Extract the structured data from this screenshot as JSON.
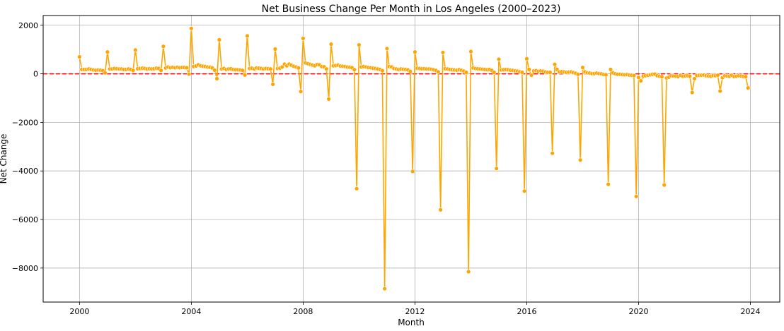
{
  "chart_data": {
    "type": "line",
    "title": "Net Business Change Per Month in Los Angeles (2000–2023)",
    "xlabel": "Month",
    "ylabel": "Net Change",
    "xlim": [
      1998.7,
      2025.05
    ],
    "ylim": [
      -9400,
      2400
    ],
    "x_ticks": [
      2000,
      2004,
      2008,
      2012,
      2016,
      2020,
      2024
    ],
    "x_tick_labels": [
      "2000",
      "2004",
      "2008",
      "2012",
      "2016",
      "2020",
      "2024"
    ],
    "y_ticks": [
      2000,
      0,
      -2000,
      -4000,
      -6000,
      -8000
    ],
    "y_tick_labels": [
      "2000",
      "0",
      "−2000",
      "−4000",
      "−6000",
      "−8000"
    ],
    "grid": true,
    "reference_line": {
      "y": 0,
      "style": "dashed"
    },
    "x_start_year": 2000,
    "points_per_year": 12,
    "series": [
      {
        "values": [
          700,
          180,
          180,
          180,
          200,
          180,
          160,
          150,
          160,
          150,
          130,
          40,
          900,
          200,
          200,
          220,
          210,
          200,
          200,
          180,
          180,
          200,
          180,
          140,
          980,
          210,
          220,
          230,
          220,
          200,
          210,
          200,
          210,
          230,
          220,
          140,
          1130,
          240,
          280,
          250,
          270,
          250,
          270,
          250,
          260,
          260,
          250,
          -10,
          1870,
          300,
          320,
          370,
          330,
          310,
          300,
          280,
          270,
          240,
          150,
          -200,
          1400,
          200,
          220,
          180,
          200,
          210,
          180,
          170,
          170,
          160,
          140,
          -50,
          1560,
          220,
          230,
          200,
          240,
          230,
          220,
          200,
          220,
          210,
          200,
          -430,
          1020,
          220,
          230,
          280,
          400,
          330,
          400,
          350,
          310,
          280,
          240,
          -730,
          1460,
          450,
          420,
          390,
          360,
          330,
          380,
          370,
          300,
          290,
          200,
          -1040,
          1220,
          330,
          340,
          360,
          320,
          310,
          300,
          280,
          270,
          250,
          170,
          -4730,
          1190,
          280,
          300,
          280,
          260,
          250,
          230,
          220,
          200,
          180,
          130,
          -8850,
          1040,
          300,
          280,
          220,
          200,
          180,
          200,
          190,
          180,
          160,
          100,
          -4020,
          900,
          230,
          220,
          210,
          210,
          200,
          200,
          190,
          170,
          140,
          80,
          -5600,
          880,
          210,
          200,
          180,
          170,
          160,
          150,
          170,
          140,
          110,
          60,
          -8150,
          920,
          240,
          220,
          210,
          200,
          190,
          180,
          170,
          180,
          140,
          60,
          -3900,
          600,
          160,
          170,
          180,
          170,
          150,
          140,
          120,
          110,
          80,
          60,
          -4830,
          620,
          180,
          -60,
          120,
          130,
          100,
          120,
          110,
          80,
          60,
          60,
          -3270,
          390,
          180,
          80,
          90,
          80,
          60,
          70,
          80,
          50,
          20,
          -20,
          -3550,
          260,
          80,
          40,
          30,
          10,
          10,
          30,
          10,
          0,
          -30,
          -40,
          -4550,
          180,
          40,
          0,
          -20,
          -20,
          -30,
          -40,
          -30,
          -50,
          -60,
          -70,
          -5050,
          -150,
          -290,
          -100,
          -80,
          -60,
          -40,
          -20,
          -10,
          -80,
          -100,
          -120,
          -4580,
          -170,
          -140,
          -80,
          -90,
          -100,
          -110,
          -60,
          -100,
          -90,
          -80,
          -100,
          -770,
          -200,
          -70,
          -60,
          -60,
          -50,
          -80,
          -90,
          -100,
          -70,
          -80,
          -60,
          -710,
          -160,
          -80,
          -90,
          -100,
          -60,
          -110,
          -100,
          -80,
          -90,
          -110,
          -120,
          -580
        ]
      }
    ]
  },
  "colors": {
    "series": "#FFA500",
    "reference_line": "#FF0000",
    "grid": "#B0B0B0",
    "axes": "#000000"
  }
}
